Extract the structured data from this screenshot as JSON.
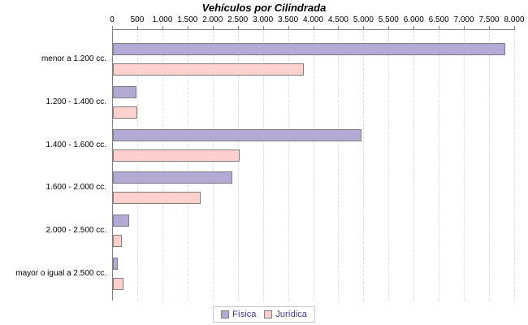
{
  "title": "Vehículos por Cilindrada",
  "chart_data": {
    "type": "bar",
    "orientation": "horizontal",
    "title": "Vehículos por Cilindrada",
    "categories": [
      "menor a 1.200 cc.",
      "1.200 - 1.400 cc.",
      "1.400 - 1.600 cc.",
      "1.600 - 2.000 cc.",
      "2.000 - 2.500 cc.",
      "mayor o igual a 2.500 cc."
    ],
    "series": [
      {
        "name": "Física",
        "color": "#B3A9D5",
        "values": [
          7800,
          470,
          4950,
          2380,
          330,
          90
        ]
      },
      {
        "name": "Jurídica",
        "color": "#FCD1CD",
        "values": [
          3800,
          490,
          2520,
          1750,
          180,
          210
        ]
      }
    ],
    "xlim": [
      0,
      8000
    ],
    "x_tick_step": 500,
    "x_tick_labels": [
      "0",
      "500",
      "1.000",
      "1.500",
      "2.000",
      "2.500",
      "3.000",
      "3.500",
      "4.000",
      "4.500",
      "5.000",
      "5.500",
      "6.000",
      "6.500",
      "7.000",
      "7.500",
      "8.000"
    ],
    "grid": "vertical-dashed",
    "legend_position": "bottom-center"
  },
  "colors": {
    "bar_border": "#7F7F7F",
    "axis": "#808080",
    "gridline": "#DBDBDB",
    "legend_text": "#3F3B85",
    "legend_border": "#C8C8C8",
    "title_text": "#000000"
  }
}
